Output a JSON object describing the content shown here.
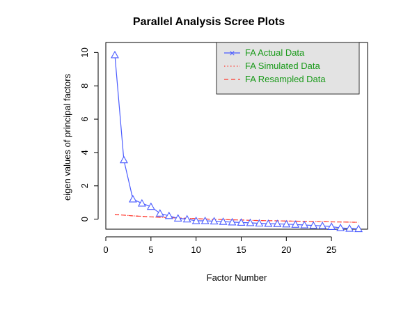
{
  "chart_data": {
    "type": "line",
    "title": "Parallel Analysis Scree Plots",
    "xlabel": "Factor Number",
    "ylabel": "eigen values of principal factors",
    "xlim": [
      0,
      29
    ],
    "ylim": [
      -0.6,
      10.6
    ],
    "xticks": [
      0,
      5,
      10,
      15,
      20,
      25
    ],
    "yticks": [
      0,
      2,
      4,
      6,
      8,
      10
    ],
    "legend_position": "top-right",
    "x": [
      1,
      2,
      3,
      4,
      5,
      6,
      7,
      8,
      9,
      10,
      11,
      12,
      13,
      14,
      15,
      16,
      17,
      18,
      19,
      20,
      21,
      22,
      23,
      24,
      25,
      26,
      27,
      28
    ],
    "series": [
      {
        "name": "FA  Actual Data",
        "color": "#4a5bff",
        "style": "solid-triangles",
        "values": [
          9.85,
          3.55,
          1.2,
          0.95,
          0.75,
          0.35,
          0.2,
          0.05,
          0.0,
          -0.1,
          -0.1,
          -0.12,
          -0.15,
          -0.18,
          -0.2,
          -0.22,
          -0.25,
          -0.27,
          -0.28,
          -0.3,
          -0.32,
          -0.35,
          -0.38,
          -0.4,
          -0.45,
          -0.52,
          -0.56,
          -0.58
        ]
      },
      {
        "name": "FA  Simulated Data",
        "color": "#ff3b30",
        "style": "dotted",
        "values": [
          0.28,
          0.24,
          0.2,
          0.17,
          0.14,
          0.11,
          0.09,
          0.07,
          0.05,
          0.03,
          0.01,
          -0.01,
          -0.02,
          -0.04,
          -0.05,
          -0.07,
          -0.08,
          -0.09,
          -0.1,
          -0.11,
          -0.12,
          -0.13,
          -0.14,
          -0.15,
          -0.16,
          -0.17,
          -0.18,
          -0.19
        ]
      },
      {
        "name": "FA  Resampled Data",
        "color": "#ff3b30",
        "style": "dashed",
        "values": [
          0.28,
          0.24,
          0.2,
          0.17,
          0.14,
          0.11,
          0.09,
          0.07,
          0.05,
          0.03,
          0.01,
          -0.01,
          -0.02,
          -0.04,
          -0.05,
          -0.07,
          -0.08,
          -0.09,
          -0.1,
          -0.11,
          -0.12,
          -0.13,
          -0.14,
          -0.15,
          -0.16,
          -0.17,
          -0.18,
          -0.19
        ]
      }
    ],
    "legend_text_color": "#1a9a1a",
    "legend_bg": "#e3e3e3",
    "legend_marker": "×"
  }
}
